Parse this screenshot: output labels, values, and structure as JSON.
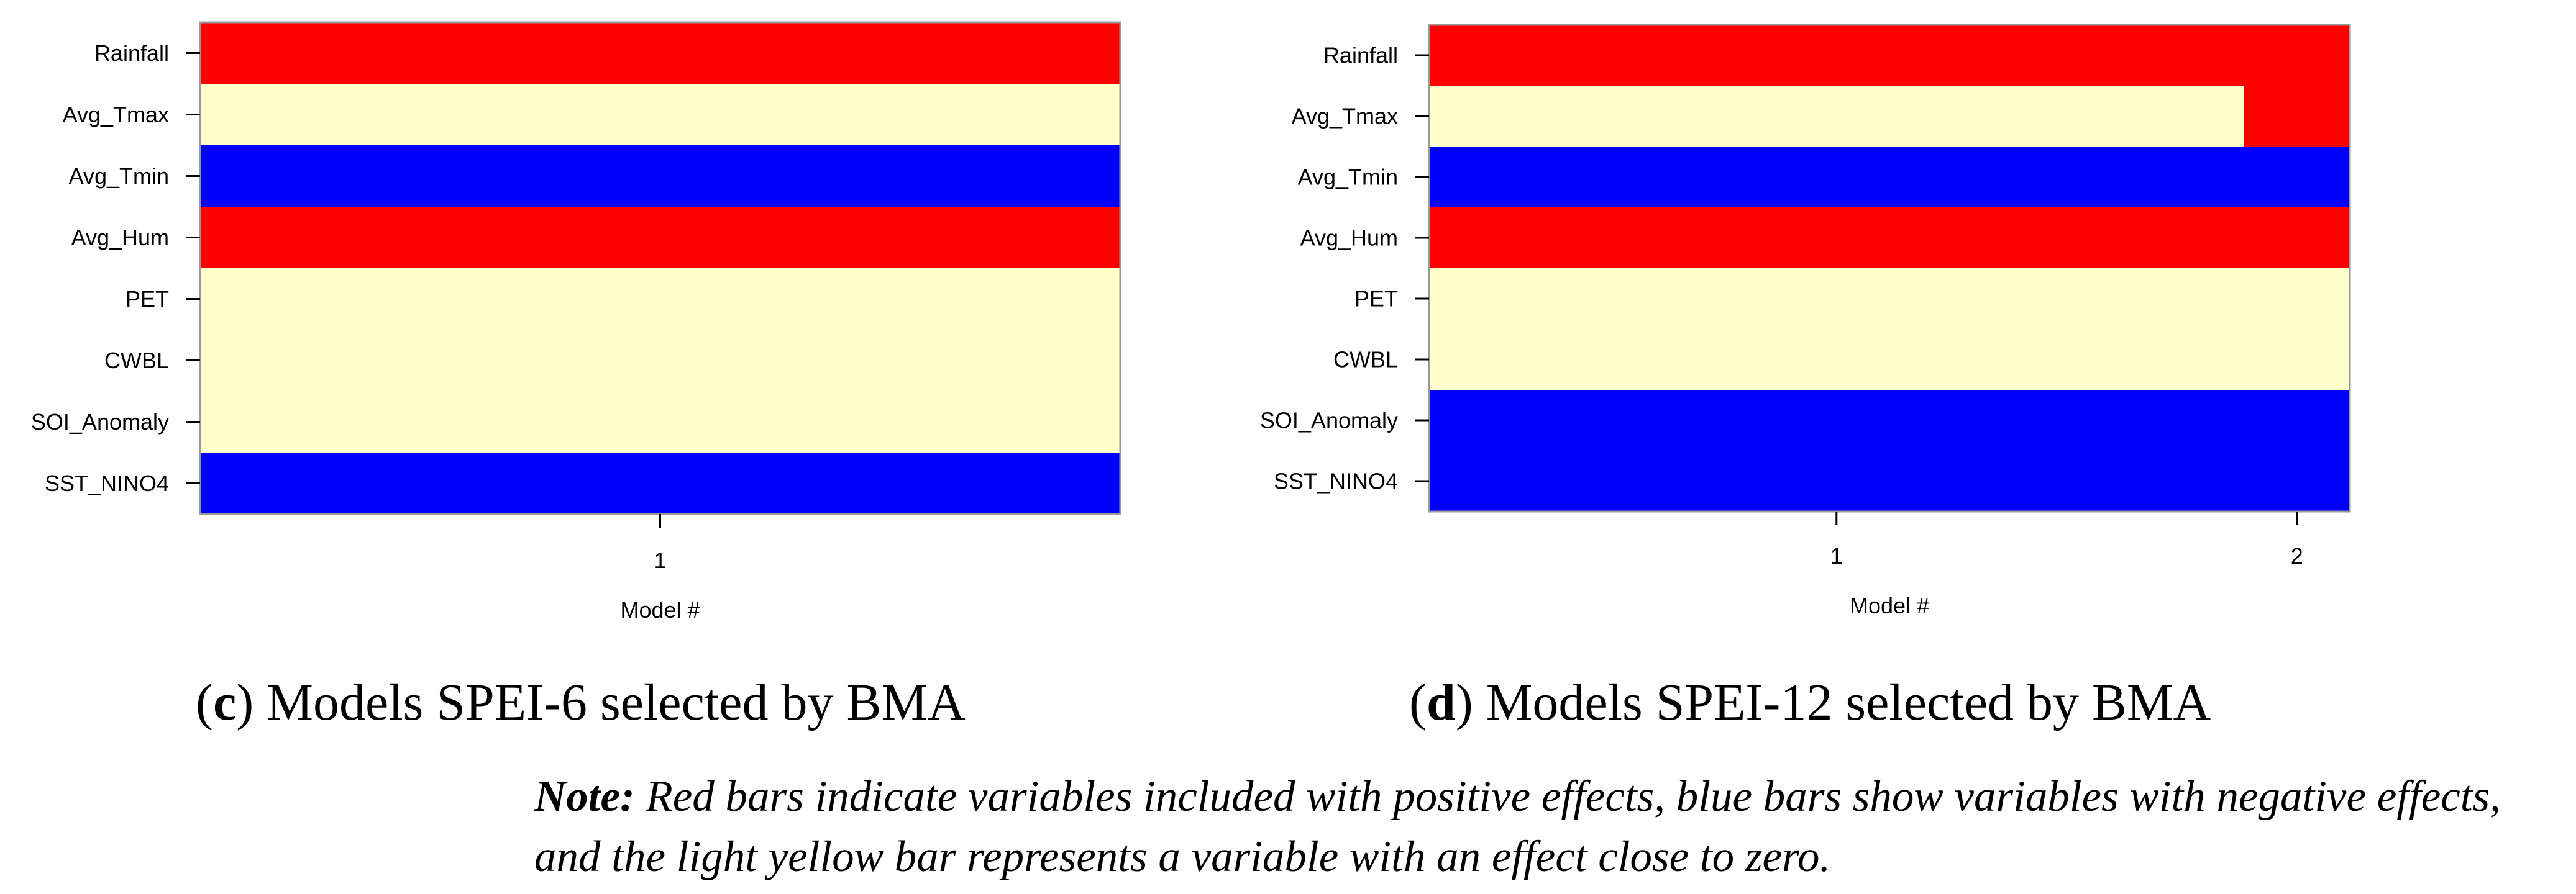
{
  "colors": {
    "positive": "#ff0000",
    "negative": "#0000ff",
    "zero": "#ffffcc",
    "axis": "#000000"
  },
  "captions": {
    "c": {
      "letter": "c",
      "text": " Models SPEI-6 selected by BMA"
    },
    "d": {
      "letter": "d",
      "text": " Models SPEI-12 selected by BMA"
    }
  },
  "note": {
    "label": "Note:",
    "line1": " Red bars indicate variables included with positive effects, blue bars show variables with negative effects,",
    "line2": "and the light yellow bar represents a variable with an effect close to zero."
  },
  "chart_data": [
    {
      "id": "c",
      "type": "heatmap",
      "title": "Models SPEI-6 selected by BMA",
      "xlabel": "Model #",
      "ylabel": "",
      "variables": [
        "Rainfall",
        "Avg_Tmax",
        "Avg_Tmin",
        "Avg_Hum",
        "PET",
        "CWBL",
        "SOI_Anomaly",
        "SST_NINO4"
      ],
      "models": [
        "1"
      ],
      "model_widths": [
        1.0
      ],
      "cells": [
        [
          "positive"
        ],
        [
          "zero"
        ],
        [
          "negative"
        ],
        [
          "positive"
        ],
        [
          "zero"
        ],
        [
          "zero"
        ],
        [
          "zero"
        ],
        [
          "negative"
        ]
      ]
    },
    {
      "id": "d",
      "type": "heatmap",
      "title": "Models SPEI-12 selected by BMA",
      "xlabel": "Model #",
      "ylabel": "",
      "variables": [
        "Rainfall",
        "Avg_Tmax",
        "Avg_Tmin",
        "Avg_Hum",
        "PET",
        "CWBL",
        "SOI_Anomaly",
        "SST_NINO4"
      ],
      "models": [
        "1",
        "2"
      ],
      "model_widths": [
        0.885,
        0.115
      ],
      "cells": [
        [
          "positive",
          "positive"
        ],
        [
          "zero",
          "positive"
        ],
        [
          "negative",
          "negative"
        ],
        [
          "positive",
          "positive"
        ],
        [
          "zero",
          "zero"
        ],
        [
          "zero",
          "zero"
        ],
        [
          "negative",
          "negative"
        ],
        [
          "negative",
          "negative"
        ]
      ]
    }
  ]
}
